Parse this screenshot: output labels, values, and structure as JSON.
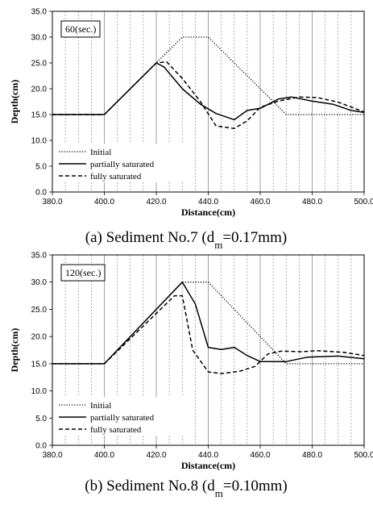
{
  "chart_data": [
    {
      "type": "line",
      "time_label": "60(sec.)",
      "xlabel": "Distance(cm)",
      "ylabel": "Depth(cm)",
      "xlim": [
        380,
        500
      ],
      "ylim": [
        0,
        35
      ],
      "x_ticks": [
        "380.0",
        "400.0",
        "420.0",
        "440.0",
        "460.0",
        "480.0",
        "500.0"
      ],
      "y_ticks": [
        "0.0",
        "5.0",
        "10.0",
        "15.0",
        "20.0",
        "25.0",
        "30.0",
        "35.0"
      ],
      "caption": {
        "prefix": "(a)  Sediment No.7 (d",
        "sub": "m",
        "suffix": "=0.17mm)"
      },
      "series": [
        {
          "name": "Initial",
          "style": "dotted",
          "points": [
            [
              380,
              15
            ],
            [
              400,
              15
            ],
            [
              420,
              25
            ],
            [
              430,
              30
            ],
            [
              440,
              30
            ],
            [
              470,
              15
            ],
            [
              500,
              15
            ]
          ]
        },
        {
          "name": "partially saturated",
          "style": "solid",
          "points": [
            [
              380,
              15
            ],
            [
              400,
              15
            ],
            [
              420,
              25
            ],
            [
              423,
              24.2
            ],
            [
              430,
              20
            ],
            [
              437,
              17
            ],
            [
              443,
              15.2
            ],
            [
              450,
              14
            ],
            [
              455,
              15.8
            ],
            [
              460,
              16.2
            ],
            [
              467,
              18
            ],
            [
              472,
              18.4
            ],
            [
              480,
              17.6
            ],
            [
              488,
              17
            ],
            [
              495,
              15.8
            ],
            [
              500,
              15.4
            ]
          ]
        },
        {
          "name": "fully saturated",
          "style": "dashed",
          "points": [
            [
              380,
              15
            ],
            [
              400,
              15
            ],
            [
              420,
              25
            ],
            [
              424,
              25.2
            ],
            [
              430,
              22
            ],
            [
              437,
              17.5
            ],
            [
              443,
              12.8
            ],
            [
              450,
              12.3
            ],
            [
              455,
              13.8
            ],
            [
              460,
              16.4
            ],
            [
              467,
              17.6
            ],
            [
              475,
              18.4
            ],
            [
              482,
              18.3
            ],
            [
              490,
              17.4
            ],
            [
              500,
              15.5
            ]
          ]
        }
      ]
    },
    {
      "type": "line",
      "time_label": "120(sec.)",
      "xlabel": "Distance(cm)",
      "ylabel": "Depth(cm)",
      "xlim": [
        380,
        500
      ],
      "ylim": [
        0,
        35
      ],
      "x_ticks": [
        "380.0",
        "400.0",
        "420.0",
        "440.0",
        "460.0",
        "480.0",
        "500.0"
      ],
      "y_ticks": [
        "0.0",
        "5.0",
        "10.0",
        "15.0",
        "20.0",
        "25.0",
        "30.0",
        "35.0"
      ],
      "caption": {
        "prefix": "(b)  Sediment No.8 (d",
        "sub": "m",
        "suffix": "=0.10mm)"
      },
      "series": [
        {
          "name": "Initial",
          "style": "dotted",
          "points": [
            [
              380,
              15
            ],
            [
              400,
              15
            ],
            [
              430,
              30
            ],
            [
              440,
              30
            ],
            [
              470,
              15
            ],
            [
              500,
              15
            ]
          ]
        },
        {
          "name": "partially saturated",
          "style": "solid",
          "points": [
            [
              380,
              15
            ],
            [
              400,
              15
            ],
            [
              430,
              30
            ],
            [
              435,
              26
            ],
            [
              440,
              18
            ],
            [
              445,
              17.6
            ],
            [
              450,
              18
            ],
            [
              455,
              16.5
            ],
            [
              460,
              15.4
            ],
            [
              470,
              15.4
            ],
            [
              478,
              16.2
            ],
            [
              490,
              16.4
            ],
            [
              500,
              15.9
            ]
          ]
        },
        {
          "name": "fully saturated",
          "style": "dashed",
          "points": [
            [
              380,
              15
            ],
            [
              400,
              15
            ],
            [
              427,
              27.5
            ],
            [
              430,
              27.5
            ],
            [
              434,
              17.5
            ],
            [
              440,
              13.5
            ],
            [
              445,
              13.2
            ],
            [
              452,
              13.6
            ],
            [
              458,
              14.5
            ],
            [
              463,
              16.8
            ],
            [
              468,
              17.3
            ],
            [
              476,
              17.2
            ],
            [
              482,
              17.4
            ],
            [
              492,
              17.1
            ],
            [
              500,
              16.5
            ]
          ]
        }
      ]
    }
  ]
}
